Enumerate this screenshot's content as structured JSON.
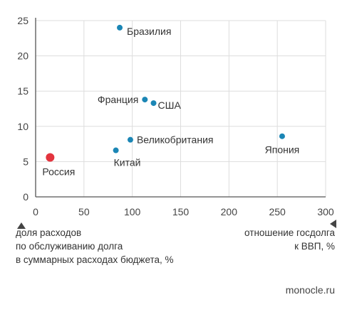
{
  "chart_data": {
    "type": "scatter",
    "title": "",
    "xlabel": "отношение госдолга к ВВП, %",
    "xlabel_lines": [
      "отношение госдолга",
      "к ВВП, %"
    ],
    "ylabel": "доля расходов по обслуживанию долга в суммарных расходах бюджета, %",
    "ylabel_lines": [
      "доля расходов",
      "по обслуживанию долга",
      "в суммарных расходах бюджета, %"
    ],
    "xlim": [
      0,
      300
    ],
    "ylim": [
      0,
      25
    ],
    "xticks": [
      0,
      50,
      100,
      150,
      200,
      250,
      300
    ],
    "yticks": [
      0,
      5,
      10,
      15,
      20,
      25
    ],
    "grid": true,
    "legend": "none",
    "colors": {
      "point": "#1b86b5",
      "highlight": "#e3343e",
      "grid": "#dddddd",
      "axis": "#555555"
    },
    "points": [
      {
        "label": "Бразилия",
        "x": 87,
        "y": 24.0,
        "highlight": false
      },
      {
        "label": "Франция",
        "x": 113,
        "y": 13.8,
        "highlight": false
      },
      {
        "label": "США",
        "x": 122,
        "y": 13.3,
        "highlight": false
      },
      {
        "label": "Великобритания",
        "x": 98,
        "y": 8.1,
        "highlight": false
      },
      {
        "label": "Китай",
        "x": 83,
        "y": 6.6,
        "highlight": false
      },
      {
        "label": "Япония",
        "x": 255,
        "y": 8.6,
        "highlight": false
      },
      {
        "label": "Россия",
        "x": 15,
        "y": 5.6,
        "highlight": true
      }
    ]
  },
  "source": "monocle.ru",
  "icons": {
    "y_axis_arrow": "arrow-up-icon",
    "x_axis_arrow": "arrow-left-icon"
  }
}
